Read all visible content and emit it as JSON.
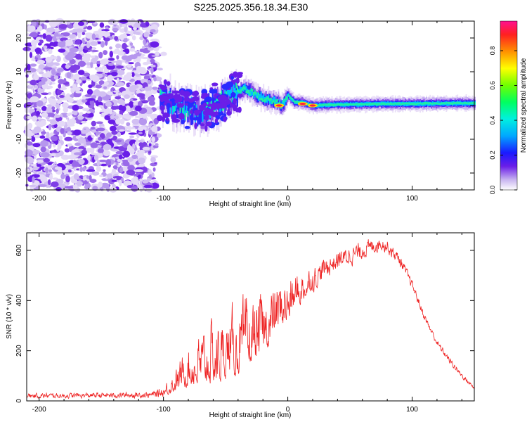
{
  "title": "S225.2025.356.18.34.E30",
  "chart_data": [
    {
      "type": "heatmap",
      "xlabel": "Height of straight line (km)",
      "ylabel": "Frequency (Hz)",
      "xlim": [
        -210,
        150
      ],
      "ylim": [
        -25,
        25
      ],
      "xticks": [
        -200,
        -100,
        0,
        100
      ],
      "xtick_labels": [
        "-200",
        "-100",
        "0",
        "100"
      ],
      "yticks": [
        -20,
        -10,
        0,
        10,
        20
      ],
      "ytick_labels": [
        "-20",
        "-10",
        "0",
        "10",
        "20"
      ],
      "noise_region_x": [
        -210,
        -105
      ],
      "ridge": {
        "x": [
          -100,
          -90,
          -80,
          -70,
          -60,
          -50,
          -40,
          -35,
          -30,
          -25,
          -20,
          -10,
          -5,
          0,
          5,
          10,
          20,
          40,
          60,
          80,
          100,
          120,
          150
        ],
        "y": [
          2,
          0,
          -1,
          -2,
          0,
          2,
          4,
          5,
          4,
          3,
          2,
          1,
          0,
          3,
          1,
          1,
          0,
          0.3,
          0.4,
          0.5,
          0.5,
          0.6,
          0.7
        ]
      },
      "peaks": [
        {
          "x": -7,
          "y": 0
        },
        {
          "x": 20,
          "y": 0
        },
        {
          "x": 12,
          "y": 0.5
        }
      ],
      "colorbar": {
        "label": "Normalized spectral amplitude",
        "ticks": [
          0.0,
          0.2,
          0.4,
          0.6,
          0.8
        ],
        "tick_labels": [
          "0.0",
          "0.2",
          "0.4",
          "0.6",
          "0.8"
        ],
        "range": [
          0,
          0.97
        ]
      }
    },
    {
      "type": "line",
      "xlabel": "Height of straight line (km)",
      "ylabel": "SNR (10 * v/v)",
      "xlim": [
        -210,
        150
      ],
      "ylim": [
        0,
        670
      ],
      "xticks": [
        -200,
        -100,
        0,
        100
      ],
      "xtick_labels": [
        "-200",
        "-100",
        "0",
        "100"
      ],
      "yticks": [
        0,
        200,
        400,
        600
      ],
      "ytick_labels": [
        "0",
        "200",
        "400",
        "600"
      ],
      "color": "#ee2222",
      "envelope": {
        "x": [
          -210,
          -150,
          -110,
          -100,
          -90,
          -80,
          -70,
          -60,
          -50,
          -40,
          -30,
          -20,
          -10,
          0,
          10,
          20,
          30,
          40,
          50,
          60,
          70,
          75,
          80,
          90,
          100,
          110,
          120,
          130,
          140,
          150
        ],
        "mean": [
          20,
          22,
          24,
          35,
          70,
          110,
          140,
          150,
          170,
          190,
          220,
          260,
          330,
          380,
          430,
          480,
          530,
          560,
          580,
          600,
          620,
          630,
          615,
          560,
          460,
          330,
          230,
          160,
          100,
          50
        ],
        "spread": [
          15,
          15,
          18,
          30,
          60,
          100,
          140,
          160,
          160,
          170,
          170,
          160,
          140,
          110,
          90,
          70,
          60,
          55,
          55,
          50,
          45,
          40,
          40,
          35,
          25,
          22,
          20,
          18,
          15,
          12
        ]
      }
    }
  ]
}
